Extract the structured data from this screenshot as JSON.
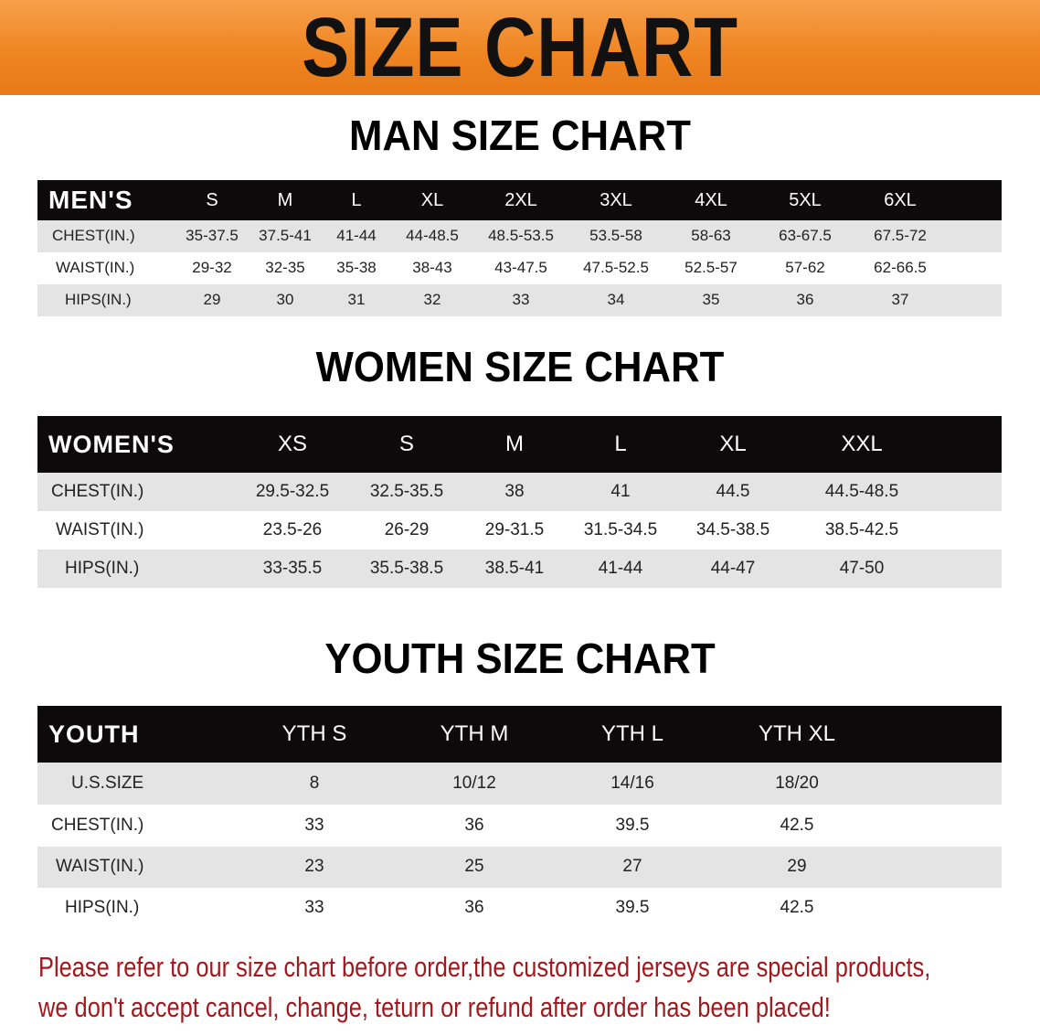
{
  "banner": {
    "title": "SIZE CHART",
    "color": "#ee8320"
  },
  "men": {
    "title": "MAN SIZE CHART",
    "header_label": "MEN'S",
    "sizes": [
      "S",
      "M",
      "L",
      "XL",
      "2XL",
      "3XL",
      "4XL",
      "5XL",
      "6XL"
    ],
    "rows": [
      {
        "label": "CHEST(IN.)",
        "values": [
          "35-37.5",
          "37.5-41",
          "41-44",
          "44-48.5",
          "48.5-53.5",
          "53.5-58",
          "58-63",
          "63-67.5",
          "67.5-72"
        ]
      },
      {
        "label": "WAIST(IN.)",
        "values": [
          "29-32",
          "32-35",
          "35-38",
          "38-43",
          "43-47.5",
          "47.5-52.5",
          "52.5-57",
          "57-62",
          "62-66.5"
        ]
      },
      {
        "label": "HIPS(IN.)",
        "values": [
          "29",
          "30",
          "31",
          "32",
          "33",
          "34",
          "35",
          "36",
          "37"
        ]
      }
    ]
  },
  "women": {
    "title": "WOMEN SIZE CHART",
    "header_label": "WOMEN'S",
    "sizes": [
      "XS",
      "S",
      "M",
      "L",
      "XL",
      "XXL"
    ],
    "rows": [
      {
        "label": "CHEST(IN.)",
        "values": [
          "29.5-32.5",
          "32.5-35.5",
          "38",
          "41",
          "44.5",
          "44.5-48.5"
        ]
      },
      {
        "label": "WAIST(IN.)",
        "values": [
          "23.5-26",
          "26-29",
          "29-31.5",
          "31.5-34.5",
          "34.5-38.5",
          "38.5-42.5"
        ]
      },
      {
        "label": "HIPS(IN.)",
        "values": [
          "33-35.5",
          "35.5-38.5",
          "38.5-41",
          "41-44",
          "44-47",
          "47-50"
        ]
      }
    ]
  },
  "youth": {
    "title": "YOUTH SIZE CHART",
    "header_label": "YOUTH",
    "sizes": [
      "YTH S",
      "YTH M",
      "YTH L",
      "YTH XL"
    ],
    "rows": [
      {
        "label": "U.S.SIZE",
        "values": [
          "8",
          "10/12",
          "14/16",
          "18/20"
        ]
      },
      {
        "label": "CHEST(IN.)",
        "values": [
          "33",
          "36",
          "39.5",
          "42.5"
        ]
      },
      {
        "label": "WAIST(IN.)",
        "values": [
          "23",
          "25",
          "27",
          "29"
        ]
      },
      {
        "label": "HIPS(IN.)",
        "values": [
          "33",
          "36",
          "39.5",
          "42.5"
        ]
      }
    ]
  },
  "notice": {
    "line1": "Please refer to our size chart before order,the customized jerseys are special products,",
    "line2": "we don't accept cancel, change, teturn or refund after order has been placed!",
    "color": "#a3181c"
  }
}
